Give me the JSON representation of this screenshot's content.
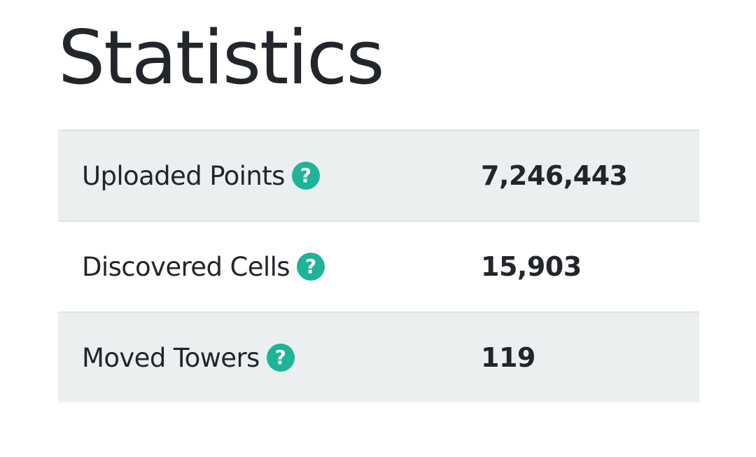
{
  "page": {
    "title": "Statistics"
  },
  "stats": {
    "rows": [
      {
        "label": "Uploaded Points",
        "help_icon": "?",
        "value": "7,246,443"
      },
      {
        "label": "Discovered Cells",
        "help_icon": "?",
        "value": "15,903"
      },
      {
        "label": "Moved Towers",
        "help_icon": "?",
        "value": "119"
      }
    ]
  },
  "colors": {
    "text": "#22262b",
    "row_shade": "#ebeff0",
    "divider": "#dfe3e6",
    "help_icon": "#1fb398"
  },
  "icons": {
    "help": "question-circle-icon"
  }
}
